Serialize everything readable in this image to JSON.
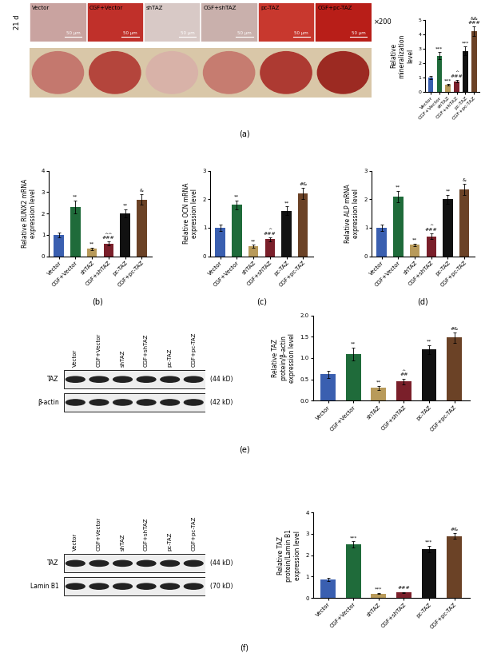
{
  "image_panel": {
    "timepoint": "21 d",
    "magnification": "×200",
    "scale_bar": "50 μm",
    "groups": [
      "Vector",
      "CGF+Vector",
      "shTAZ",
      "CGF+shTAZ",
      "pc-TAZ",
      "CGF+pc-TAZ"
    ]
  },
  "chart_data": [
    {
      "type": "bar",
      "panel_label": "(a)",
      "y_label": "Relative mineralization level",
      "categories": [
        "Vector",
        "CGF+Vector",
        "shTAZ",
        "CGF+shTAZ",
        "pc-TAZ",
        "CGF+pc-TAZ"
      ],
      "values": [
        1.0,
        2.5,
        0.5,
        0.75,
        2.85,
        4.2
      ],
      "errors": [
        0.1,
        0.25,
        0.05,
        0.1,
        0.3,
        0.35
      ],
      "annotations": [
        null,
        "***",
        "***",
        [
          "^",
          "###"
        ],
        "***",
        [
          "&&",
          "###"
        ]
      ],
      "colors": [
        "#3a5fb0",
        "#1f6b3a",
        "#b89a5a",
        "#7a1f2a",
        "#111111",
        "#6b4226"
      ],
      "ylim": [
        0,
        5
      ],
      "yticks": [
        0,
        1,
        2,
        3,
        4,
        5
      ]
    },
    {
      "type": "bar",
      "panel_label": "(b)",
      "y_label": "Relative RUNX2 mRNA expression level",
      "categories": [
        "Vector",
        "CGF+Vector",
        "shTAZ",
        "CGF+shTAZ",
        "pc-TAZ",
        "CGF+pc-TAZ"
      ],
      "values": [
        1.0,
        2.3,
        0.35,
        0.6,
        2.0,
        2.65
      ],
      "errors": [
        0.1,
        0.3,
        0.05,
        0.08,
        0.2,
        0.25
      ],
      "annotations": [
        null,
        "**",
        "**",
        [
          "^^",
          "###"
        ],
        "**",
        "&"
      ],
      "colors": [
        "#3a5fb0",
        "#1f6b3a",
        "#b89a5a",
        "#7a1f2a",
        "#111111",
        "#6b4226"
      ],
      "ylim": [
        0,
        4
      ],
      "yticks": [
        0,
        1,
        2,
        3,
        4
      ]
    },
    {
      "type": "bar",
      "panel_label": "(c)",
      "y_label": "Relative OCN mRNA expression level",
      "categories": [
        "Vector",
        "CGF+Vector",
        "shTAZ",
        "CGF+shTAZ",
        "pc-TAZ",
        "CGF+pc-TAZ"
      ],
      "values": [
        1.0,
        1.8,
        0.35,
        0.6,
        1.6,
        2.2
      ],
      "errors": [
        0.1,
        0.15,
        0.05,
        0.07,
        0.15,
        0.2
      ],
      "annotations": [
        null,
        "**",
        "**",
        [
          "^",
          "###"
        ],
        "**",
        "#&"
      ],
      "colors": [
        "#3a5fb0",
        "#1f6b3a",
        "#b89a5a",
        "#7a1f2a",
        "#111111",
        "#6b4226"
      ],
      "ylim": [
        0,
        3
      ],
      "yticks": [
        0,
        1,
        2,
        3
      ]
    },
    {
      "type": "bar",
      "panel_label": "(d)",
      "y_label": "Relative ALP mRNA expression level",
      "categories": [
        "Vector",
        "CGF+Vector",
        "shTAZ",
        "CGF+shTAZ",
        "pc-TAZ",
        "CGF+pc-TAZ"
      ],
      "values": [
        1.0,
        2.1,
        0.4,
        0.7,
        2.0,
        2.35
      ],
      "errors": [
        0.1,
        0.2,
        0.05,
        0.1,
        0.15,
        0.2
      ],
      "annotations": [
        null,
        "**",
        "**",
        [
          "^",
          "###"
        ],
        "**",
        "&"
      ],
      "colors": [
        "#3a5fb0",
        "#1f6b3a",
        "#b89a5a",
        "#7a1f2a",
        "#111111",
        "#6b4226"
      ],
      "ylim": [
        0,
        3
      ],
      "yticks": [
        0,
        1,
        2,
        3
      ]
    },
    {
      "type": "bar",
      "panel_label": "(e)",
      "y_label": "Relative TAZ protein/β-actin expression level",
      "categories": [
        "Vector",
        "CGF+Vector",
        "shTAZ",
        "CGF+shTAZ",
        "pc-TAZ",
        "CGF+pc-TAZ"
      ],
      "values": [
        0.62,
        1.1,
        0.3,
        0.45,
        1.2,
        1.48
      ],
      "errors": [
        0.08,
        0.15,
        0.05,
        0.07,
        0.1,
        0.12
      ],
      "annotations": [
        null,
        "**",
        "**",
        [
          "^",
          "##"
        ],
        "**",
        "#&"
      ],
      "colors": [
        "#3a5fb0",
        "#1f6b3a",
        "#b89a5a",
        "#7a1f2a",
        "#111111",
        "#6b4226"
      ],
      "ylim": [
        0,
        2
      ],
      "yticks": [
        {
          "value": 0,
          "label": "0.0"
        },
        0.5,
        {
          "value": 1,
          "label": "1.0"
        },
        1.5,
        {
          "value": 2,
          "label": "2.0"
        }
      ]
    },
    {
      "type": "bar",
      "panel_label": "(f)",
      "y_label": "Relative TAZ protein/Lamin B1 expression level",
      "categories": [
        "Vector",
        "CGF+Vector",
        "shTAZ",
        "CGF+shTAZ",
        "pc-TAZ",
        "CGF+pc-TAZ"
      ],
      "values": [
        0.85,
        2.5,
        0.2,
        0.25,
        2.3,
        2.9
      ],
      "errors": [
        0.08,
        0.15,
        0.03,
        0.03,
        0.15,
        0.12
      ],
      "annotations": [
        null,
        "***",
        "***",
        "###",
        "***",
        "#&"
      ],
      "colors": [
        "#3a5fb0",
        "#1f6b3a",
        "#b89a5a",
        "#7a1f2a",
        "#111111",
        "#6b4226"
      ],
      "ylim": [
        0,
        4
      ],
      "yticks": [
        0,
        1,
        2,
        3,
        4
      ]
    }
  ],
  "blots": [
    {
      "lanes": [
        "Vector",
        "CGF+Vector",
        "shTAZ",
        "CGF+shTAZ",
        "pc-TAZ",
        "CGF+pc-TAZ"
      ],
      "rows": [
        {
          "name": "TAZ",
          "size": "(44 kD)"
        },
        {
          "name": "β-actin",
          "size": "(42 kD)"
        }
      ]
    },
    {
      "lanes": [
        "Vector",
        "CGF+Vector",
        "shTAZ",
        "CGF+shTAZ",
        "pc-TAZ",
        "CGF+pc-TAZ"
      ],
      "rows": [
        {
          "name": "TAZ",
          "size": "(44 kD)"
        },
        {
          "name": "Lamin B1",
          "size": "(70 kD)"
        }
      ]
    }
  ]
}
